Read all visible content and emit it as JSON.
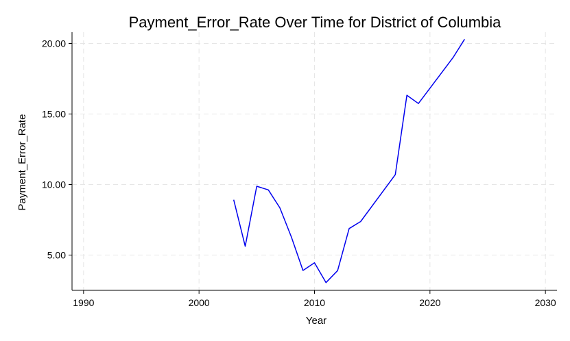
{
  "chart_data": {
    "type": "line",
    "title": "Payment_Error_Rate Over Time for District of Columbia",
    "xlabel": "Year",
    "ylabel": "Payment_Error_Rate",
    "xlim": [
      1989,
      2031
    ],
    "ylim": [
      2.5,
      20.8
    ],
    "xticks": [
      1990,
      2000,
      2010,
      2020,
      2030
    ],
    "yticks": [
      5,
      10,
      15,
      20
    ],
    "ytick_labels": [
      "5.00",
      "10.00",
      "15.00",
      "20.00"
    ],
    "grid": true,
    "series": [
      {
        "color": "#0000ee",
        "x": [
          2003,
          2004,
          2005,
          2006,
          2007,
          2008,
          2009,
          2010,
          2011,
          2012,
          2013,
          2014,
          2017,
          2018,
          2019,
          2022,
          2023
        ],
        "y": [
          8.92,
          5.62,
          9.88,
          9.62,
          8.35,
          6.28,
          3.91,
          4.45,
          3.05,
          3.9,
          6.88,
          7.38,
          10.7,
          16.33,
          15.74,
          19.0,
          20.3
        ]
      }
    ]
  }
}
